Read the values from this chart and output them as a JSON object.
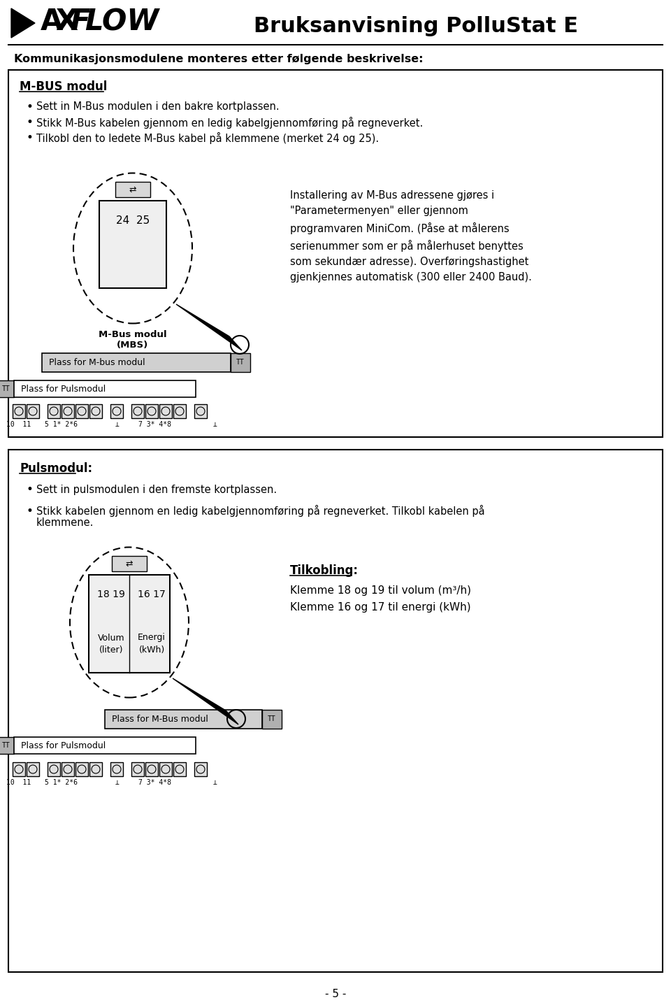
{
  "page_bg": "#ffffff",
  "header_title": "Bruksanvisning PolluStat E",
  "section_heading": "Kommunikasjonsmodulene monteres etter følgende beskrivelse:",
  "box1_title": "M-BUS modul",
  "box1_bullets": [
    "Sett in M-Bus modulen i den bakre kortplassen.",
    "Stikk M-Bus kabelen gjennom en ledig kabelgjennomføring på regneverket.",
    "Tilkobl den to ledete M-Bus kabel på klemmene (merket 24 og 25)."
  ],
  "mbus_info_text": "Installering av M-Bus adressene gjøres i\n\"Parametermenyen\" eller gjennom\nprogramvaren MiniCom. (Påse at målerens\nserienummer som er på målerhuset benyttes\nsom sekundær adresse). Overføringshastighet\ngjenkjennes automatisk (300 eller 2400 Baud).",
  "box2_title": "Pulsmodul:",
  "box2_bullet1": "Sett in pulsmodulen i den fremste kortplassen.",
  "box2_bullet2": "Stikk kabelen gjennom en ledig kabelgjennomføring på regneverket. Tilkobl kabelen på klemmene.",
  "tilkobling_title": "Tilkobling:",
  "tilkobling_line1": "Klemme 18 og 19 til volum (m³/h)",
  "tilkobling_line2": "Klemme 16 og 17 til energi (kWh)",
  "page_number": "- 5 -",
  "mbus_label1": "M-Bus modul",
  "mbus_label2": "(MBS)",
  "plass_mbus": "Plass for M-bus modul",
  "plass_puls": "Plass for Pulsmodul",
  "plass_mbus2": "Plass for M-Bus modul",
  "term_labels": [
    "10  11",
    "5 1* 2*6",
    "⊥",
    "7 3* 4*8",
    "⊥"
  ],
  "module_label_24_25": "24  25",
  "module_label_18_19": "18 19",
  "module_label_16_17": "16 17",
  "module_label_volum": "Volum",
  "module_label_liter": "(liter)",
  "module_label_energi": "Energi",
  "module_label_kwh": "(kWh)"
}
